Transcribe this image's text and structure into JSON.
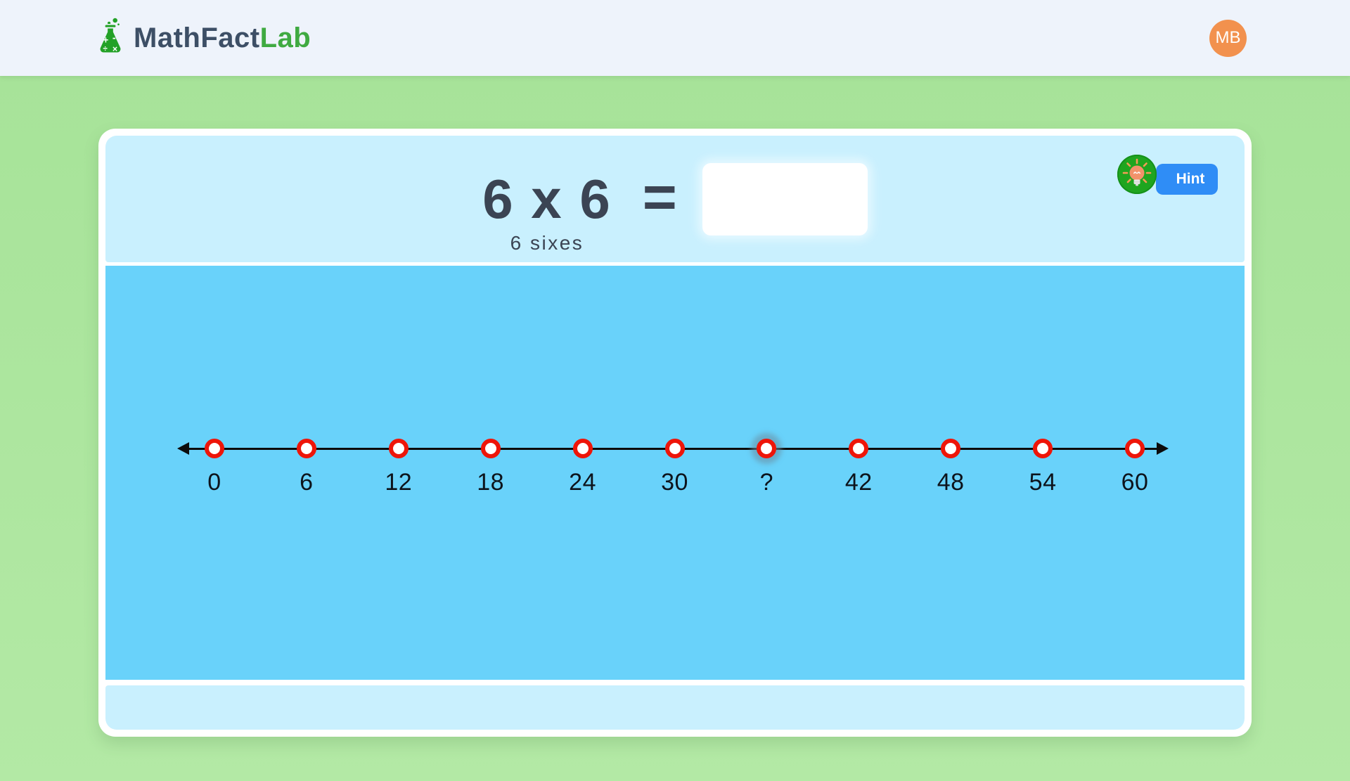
{
  "header": {
    "logo_primary": "MathFact",
    "logo_secondary": "Lab",
    "avatar_initials": "MB"
  },
  "problem": {
    "expression": "6 x 6",
    "equals_sign": "=",
    "caption": "6 sixes",
    "answer_value": ""
  },
  "hint": {
    "label": "Hint"
  },
  "number_line": {
    "labels": [
      "0",
      "6",
      "12",
      "18",
      "24",
      "30",
      "?",
      "42",
      "48",
      "54",
      "60"
    ],
    "unknown_index": 6
  },
  "colors": {
    "header_bg": "#eef3fb",
    "page_bg_green": "#a9e49c",
    "card_bg": "#ffffff",
    "section_light_blue": "#c9f0fe",
    "panel_blue": "#69d2fa",
    "hint_blue": "#2f8df6",
    "hint_circle_green": "#1fa51f",
    "brand_green": "#3faa41",
    "brand_slate": "#3d4f66",
    "avatar_orange": "#f2914e",
    "point_ring_red": "#ee1509",
    "text_dark": "#3b4453"
  }
}
